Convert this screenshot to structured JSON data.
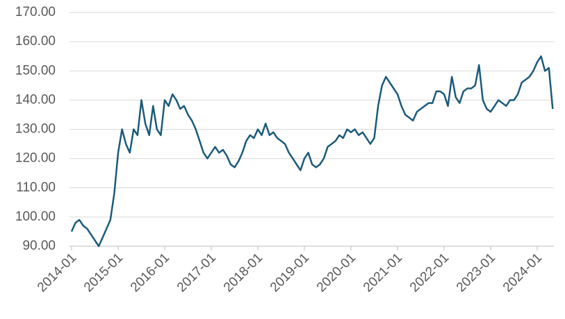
{
  "chart_data": {
    "type": "line",
    "x": [
      "2014-01",
      "2014-02",
      "2014-03",
      "2014-04",
      "2014-05",
      "2014-06",
      "2014-07",
      "2014-08",
      "2014-09",
      "2014-10",
      "2014-11",
      "2014-12",
      "2015-01",
      "2015-02",
      "2015-03",
      "2015-04",
      "2015-05",
      "2015-06",
      "2015-07",
      "2015-08",
      "2015-09",
      "2015-10",
      "2015-11",
      "2015-12",
      "2016-01",
      "2016-02",
      "2016-03",
      "2016-04",
      "2016-05",
      "2016-06",
      "2016-07",
      "2016-08",
      "2016-09",
      "2016-10",
      "2016-11",
      "2016-12",
      "2017-01",
      "2017-02",
      "2017-03",
      "2017-04",
      "2017-05",
      "2017-06",
      "2017-07",
      "2017-08",
      "2017-09",
      "2017-10",
      "2017-11",
      "2017-12",
      "2018-01",
      "2018-02",
      "2018-03",
      "2018-04",
      "2018-05",
      "2018-06",
      "2018-07",
      "2018-08",
      "2018-09",
      "2018-10",
      "2018-11",
      "2018-12",
      "2019-01",
      "2019-02",
      "2019-03",
      "2019-04",
      "2019-05",
      "2019-06",
      "2019-07",
      "2019-08",
      "2019-09",
      "2019-10",
      "2019-11",
      "2019-12",
      "2020-01",
      "2020-02",
      "2020-03",
      "2020-04",
      "2020-05",
      "2020-06",
      "2020-07",
      "2020-08",
      "2020-09",
      "2020-10",
      "2020-11",
      "2020-12",
      "2021-01",
      "2021-02",
      "2021-03",
      "2021-04",
      "2021-05",
      "2021-06",
      "2021-07",
      "2021-08",
      "2021-09",
      "2021-10",
      "2021-11",
      "2021-12",
      "2022-01",
      "2022-02",
      "2022-03",
      "2022-04",
      "2022-05",
      "2022-06",
      "2022-07",
      "2022-08",
      "2022-09",
      "2022-10",
      "2022-11",
      "2022-12",
      "2023-01",
      "2023-02",
      "2023-03",
      "2023-04",
      "2023-05",
      "2023-06",
      "2023-07",
      "2023-08",
      "2023-09",
      "2023-10",
      "2023-11",
      "2023-12",
      "2024-01",
      "2024-02",
      "2024-03",
      "2024-04",
      "2024-05"
    ],
    "series": [
      {
        "color": "#1b5a7a",
        "values": [
          95,
          98,
          99,
          97,
          96,
          94,
          92,
          90,
          93,
          96,
          99,
          108,
          122,
          130,
          125,
          122,
          130,
          128,
          140,
          132,
          128,
          138,
          130,
          128,
          140,
          138,
          142,
          140,
          137,
          138,
          135,
          133,
          130,
          126,
          122,
          120,
          122,
          124,
          122,
          123,
          121,
          118,
          117,
          119,
          122,
          126,
          128,
          127,
          130,
          128,
          132,
          128,
          129,
          127,
          126,
          125,
          122,
          120,
          118,
          116,
          120,
          122,
          118,
          117,
          118,
          120,
          124,
          125,
          126,
          128,
          127,
          130,
          129,
          130,
          128,
          129,
          127,
          125,
          127,
          138,
          145,
          148,
          146,
          144,
          142,
          138,
          135,
          134,
          133,
          136,
          137,
          138,
          139,
          139,
          143,
          143,
          142,
          138,
          148,
          141,
          139,
          143,
          144,
          144,
          145,
          152,
          140,
          137,
          136,
          138,
          140,
          139,
          138,
          140,
          140,
          142,
          146,
          147,
          148,
          150,
          153,
          155,
          150,
          151,
          137
        ]
      }
    ],
    "ylim": [
      90,
      170
    ],
    "yticks": [
      {
        "value": 90,
        "label": "90.00"
      },
      {
        "value": 100,
        "label": "100.00"
      },
      {
        "value": 110,
        "label": "110.00"
      },
      {
        "value": 120,
        "label": "120.00"
      },
      {
        "value": 130,
        "label": "130.00"
      },
      {
        "value": 140,
        "label": "140.00"
      },
      {
        "value": 150,
        "label": "150.00"
      },
      {
        "value": 160,
        "label": "160.00"
      },
      {
        "value": 170,
        "label": "170.00"
      }
    ],
    "xticks": [
      "2014-01",
      "2015-01",
      "2016-01",
      "2017-01",
      "2018-01",
      "2019-01",
      "2020-01",
      "2021-01",
      "2022-01",
      "2023-01",
      "2024-01"
    ],
    "grid": true
  }
}
